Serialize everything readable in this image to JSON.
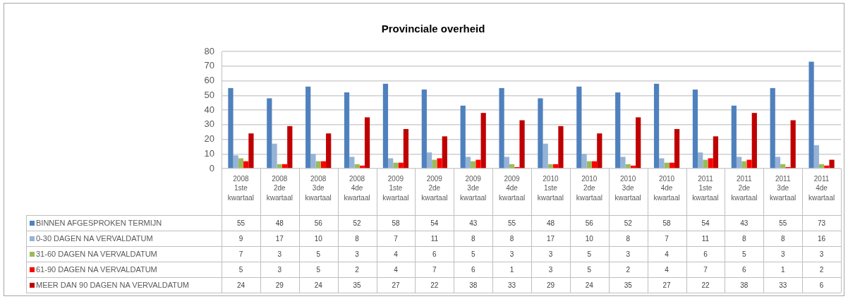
{
  "chart_data": {
    "type": "bar",
    "title": "Provinciale overheid",
    "categories": [
      "2008 1ste kwartaal",
      "2008 2de kwartaal",
      "2008 3de kwartaal",
      "2008 4de kwartaal",
      "2009 1ste kwartaal",
      "2009 2de kwartaal",
      "2009 3de kwartaal",
      "2009 4de kwartaal",
      "2010 1ste kwartaal",
      "2010 2de kwartaal",
      "2010 3de kwartaal",
      "2010 4de kwartaal",
      "2011 1ste kwartaal",
      "2011 2de kwartaal",
      "2011 3de kwartaal",
      "2011 4de kwartaal"
    ],
    "series": [
      {
        "name": "BINNEN AFGESPROKEN TERMIJN",
        "color": "#4f81bd",
        "values": [
          55,
          48,
          56,
          52,
          58,
          54,
          43,
          55,
          48,
          56,
          52,
          58,
          54,
          43,
          55,
          73
        ]
      },
      {
        "name": "0-30 DAGEN NA VERVALDATUM",
        "color": "#95b3d7",
        "values": [
          9,
          17,
          10,
          8,
          7,
          11,
          8,
          8,
          17,
          10,
          8,
          7,
          11,
          8,
          8,
          16
        ]
      },
      {
        "name": "31-60 DAGEN NA VERVALDATUM",
        "color": "#9bbb59",
        "values": [
          7,
          3,
          5,
          3,
          4,
          6,
          5,
          3,
          3,
          5,
          3,
          4,
          6,
          5,
          3,
          3
        ]
      },
      {
        "name": "61-90 DAGEN NA VERVALDATUM",
        "color": "#ff0000",
        "values": [
          5,
          3,
          5,
          2,
          4,
          7,
          6,
          1,
          3,
          5,
          2,
          4,
          7,
          6,
          1,
          2
        ]
      },
      {
        "name": "MEER DAN 90 DAGEN NA VERVALDATUM",
        "color": "#c00000",
        "values": [
          24,
          29,
          24,
          35,
          27,
          22,
          38,
          33,
          29,
          24,
          35,
          27,
          22,
          38,
          33,
          6
        ]
      }
    ],
    "ylim": [
      0,
      80
    ],
    "yticks": [
      0,
      10,
      20,
      30,
      40,
      50,
      60,
      70,
      80
    ],
    "grid": "y",
    "legend": "bottom left",
    "data_labels": true
  }
}
